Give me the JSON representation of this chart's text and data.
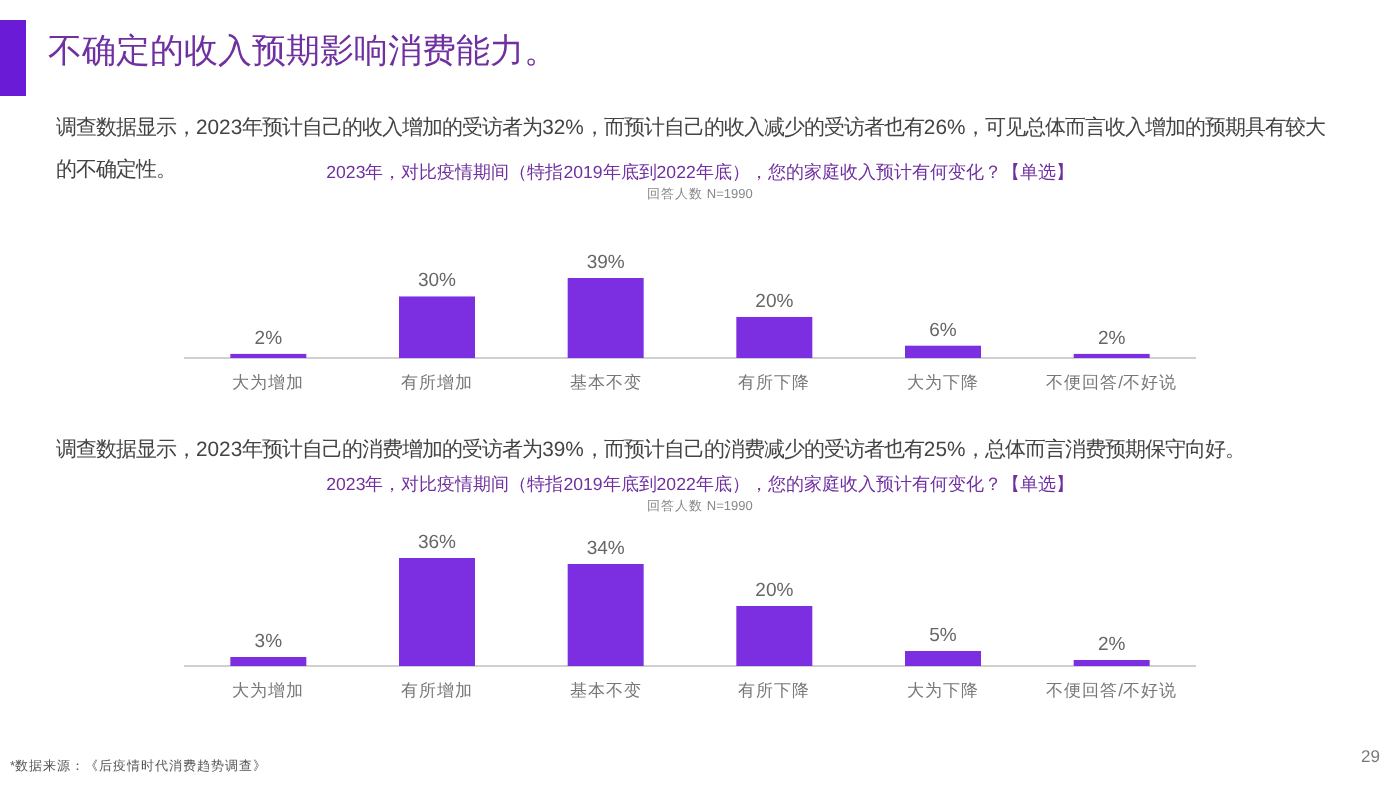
{
  "chart_data": [
    {
      "type": "bar",
      "title": "2023年，对比疫情期间（特指2019年底到2022年底），您的家庭收入预计有何变化？【单选】",
      "subtitle": "回答人数 N=1990",
      "categories": [
        "大为增加",
        "有所增加",
        "基本不变",
        "有所下降",
        "大为下降",
        "不便回答/不好说"
      ],
      "values": [
        2,
        30,
        39,
        20,
        6,
        2
      ],
      "value_labels": [
        "2%",
        "30%",
        "39%",
        "20%",
        "6%",
        "2%"
      ],
      "color": "#7b2fe0",
      "annotations": [
        "不确定的收入预期影响消费能力。",
        "调查数据显示，2023年预计自己的收入增加的受访者为32%，而预计自己的收入减少的受访者也有26%，可见总体而言收入增加的预期具有较大的不确定性。"
      ]
    },
    {
      "type": "bar",
      "title": "2023年，对比疫情期间（特指2019年底到2022年底），您的家庭收入预计有何变化？【单选】",
      "subtitle": "回答人数 N=1990",
      "categories": [
        "大为增加",
        "有所增加",
        "基本不变",
        "有所下降",
        "大为下降",
        "不便回答/不好说"
      ],
      "values": [
        3,
        36,
        34,
        20,
        5,
        2
      ],
      "value_labels": [
        "3%",
        "36%",
        "34%",
        "20%",
        "5%",
        "2%"
      ],
      "color": "#7b2fe0",
      "annotations": [
        "调查数据显示，2023年预计自己的消费增加的受访者为39%，而预计自己的消费减少的受访者也有25%，总体而言消费预期保守向好。",
        "*数据来源：《后疫情时代消费趋势调查》",
        "29"
      ]
    }
  ]
}
